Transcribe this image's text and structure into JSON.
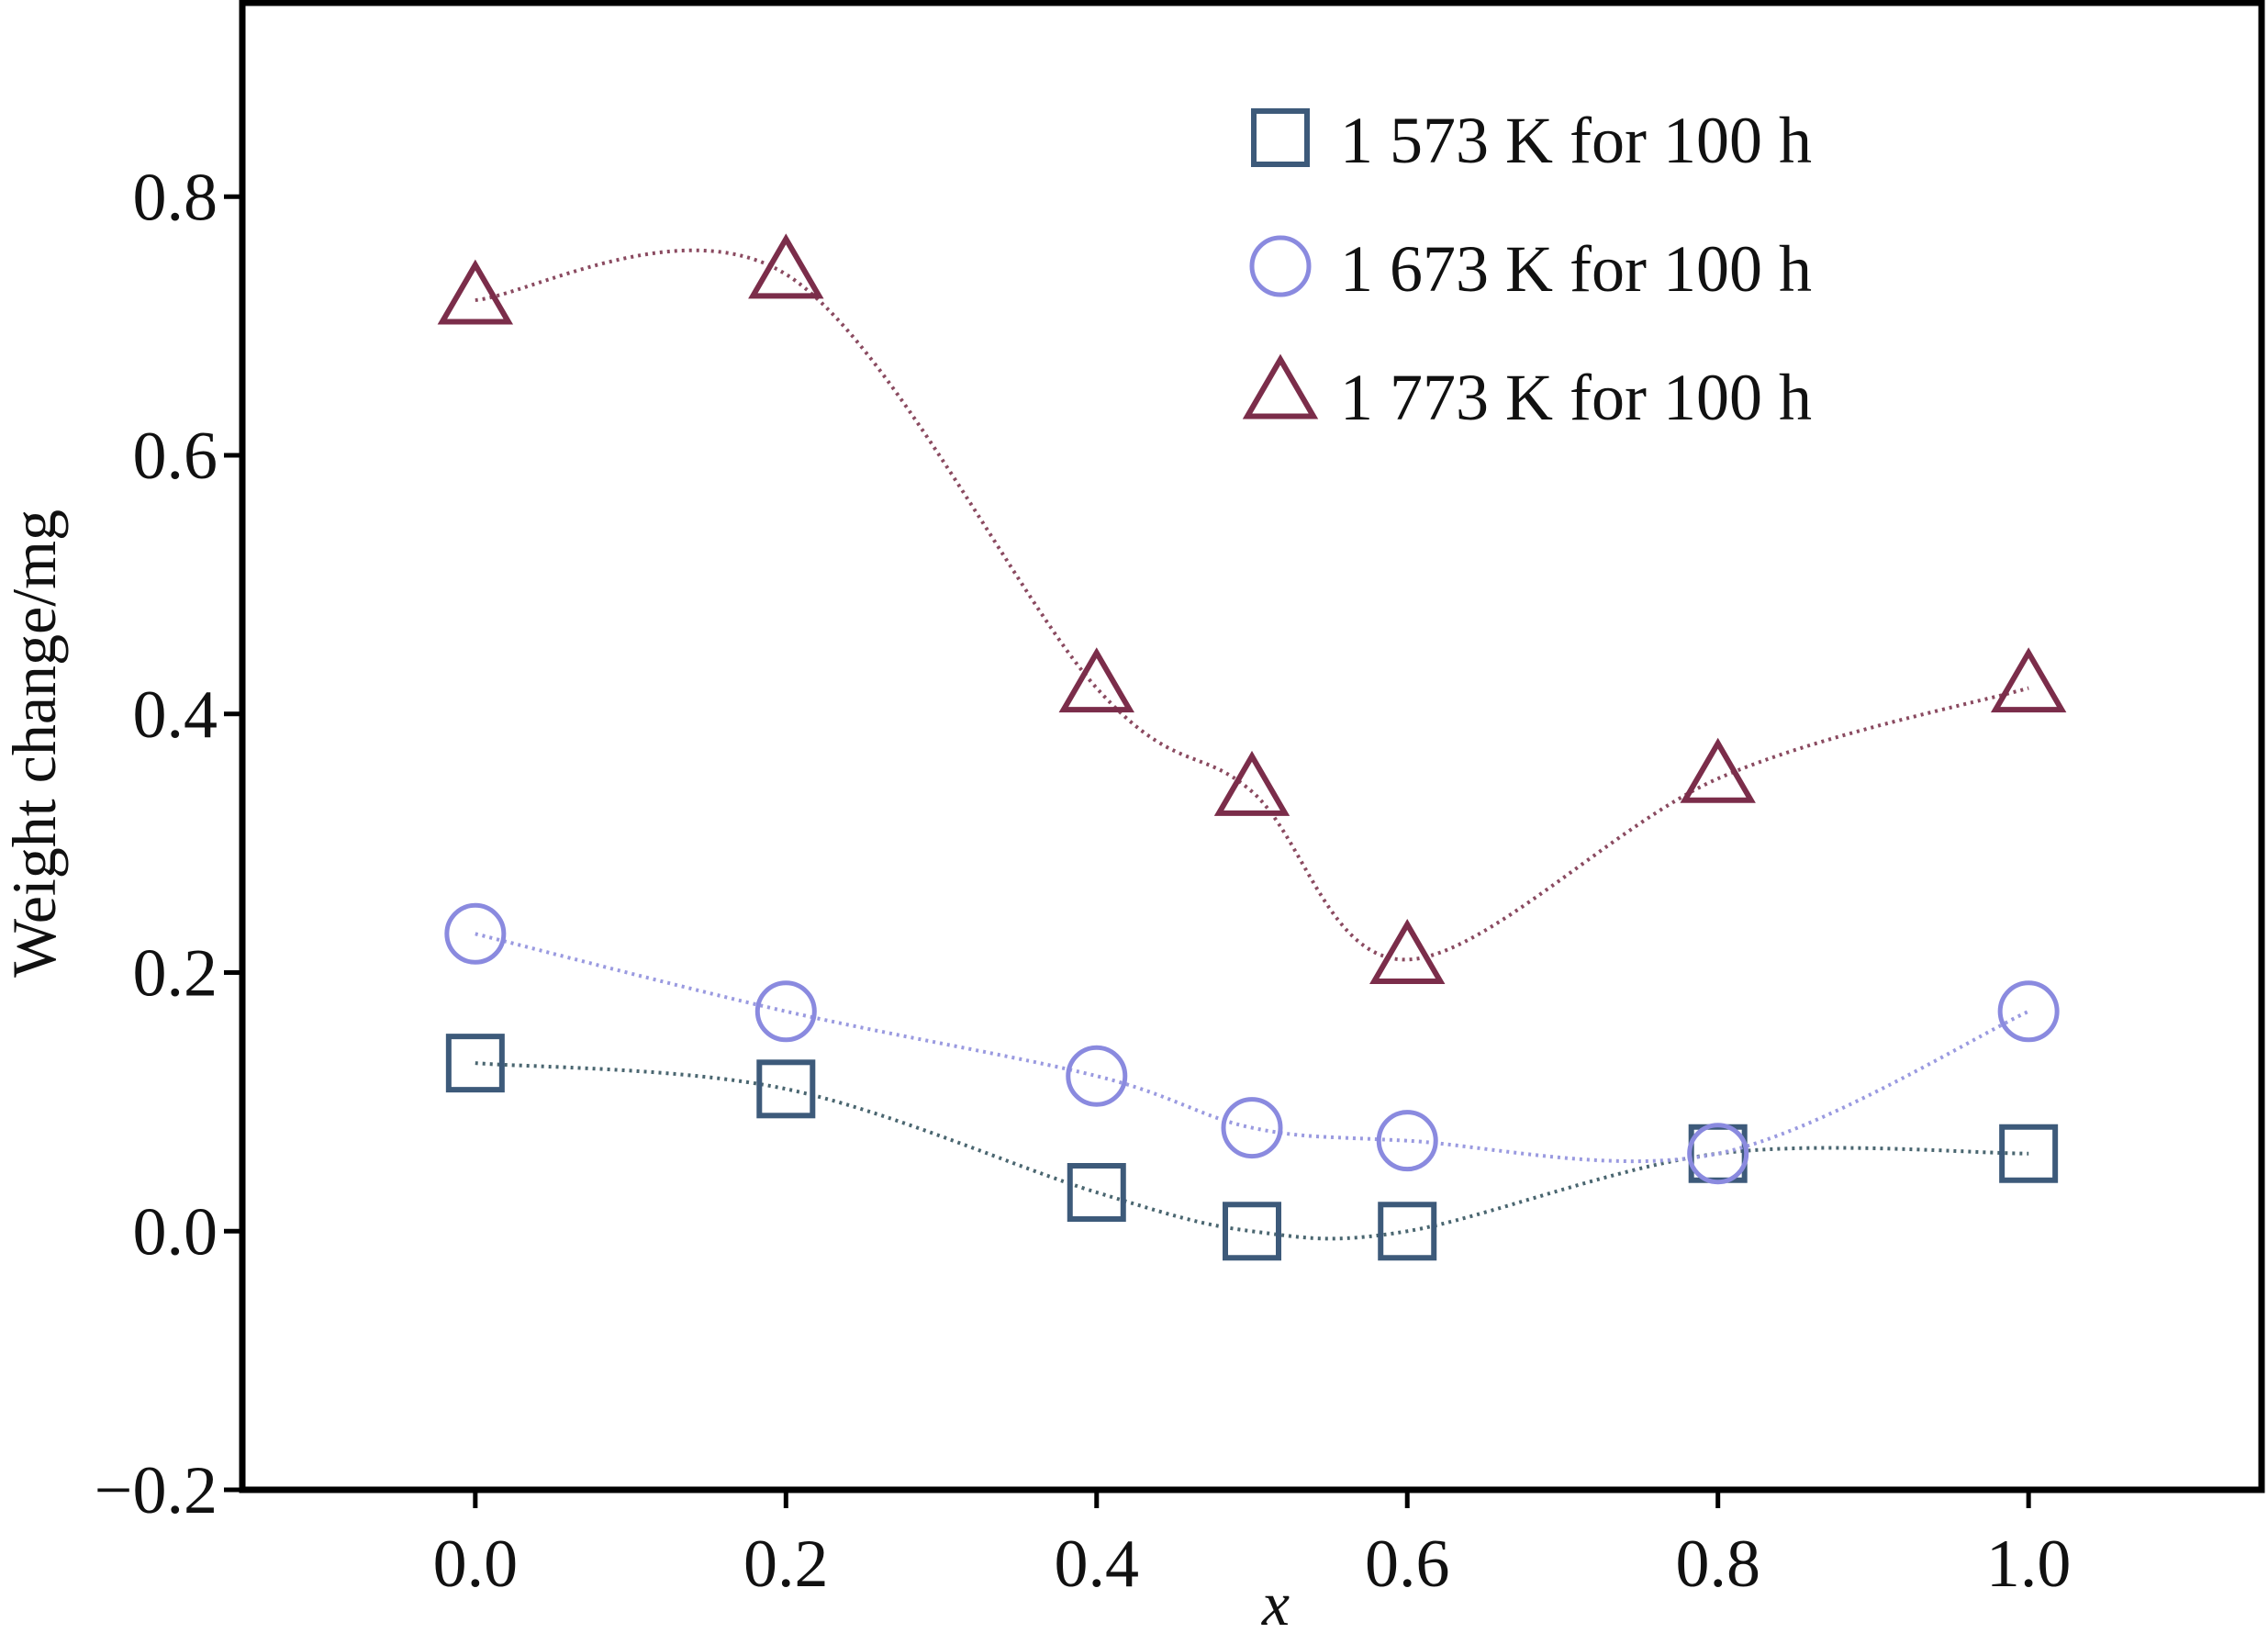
{
  "chart_data": {
    "type": "line",
    "title": "",
    "xlabel": "x",
    "ylabel": "Weight change/mg",
    "xlim": [
      -0.15,
      1.15
    ],
    "ylim": [
      -0.2,
      0.95
    ],
    "xticks": [
      0.0,
      0.2,
      0.4,
      0.6,
      0.8,
      1.0
    ],
    "xtick_labels": [
      "0.0",
      "0.2",
      "0.4",
      "0.6",
      "0.8",
      "1.0"
    ],
    "yticks": [
      -0.2,
      0.0,
      0.2,
      0.4,
      0.6,
      0.8
    ],
    "ytick_labels": [
      "−0.2",
      "0.0",
      "0.2",
      "0.4",
      "0.6",
      "0.8"
    ],
    "grid": false,
    "legend_position": "top-right",
    "x": [
      0.0,
      0.2,
      0.4,
      0.5,
      0.6,
      0.8,
      1.0
    ],
    "series": [
      {
        "name": "1 573 K for 100 h",
        "marker": "square",
        "color": "#3d5a7a",
        "line_color": "#4a6670",
        "values": [
          0.13,
          0.11,
          0.03,
          0.0,
          0.0,
          0.06,
          0.06
        ]
      },
      {
        "name": "1 673 K for 100 h",
        "marker": "circle",
        "color": "#8a8adf",
        "line_color": "#9a9ae0",
        "values": [
          0.23,
          0.17,
          0.12,
          0.08,
          0.07,
          0.06,
          0.17
        ]
      },
      {
        "name": "1 773 K for 100 h",
        "marker": "triangle",
        "color": "#7b2d4a",
        "line_color": "#8a4a60",
        "values": [
          0.72,
          0.74,
          0.42,
          0.34,
          0.21,
          0.35,
          0.42
        ]
      }
    ]
  }
}
